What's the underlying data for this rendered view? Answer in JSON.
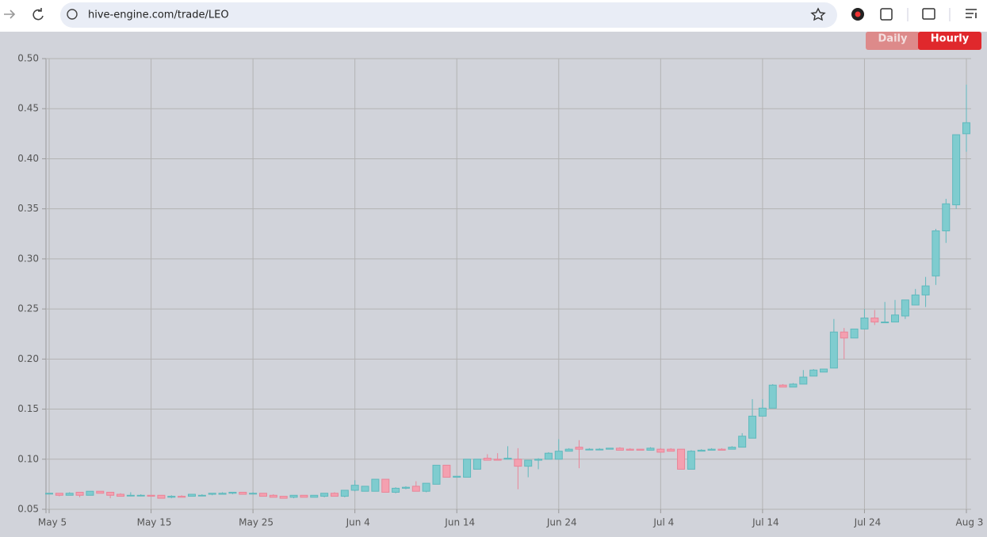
{
  "browser": {
    "url": "hive-engine.com/trade/LEO"
  },
  "buttons": [
    "Daily",
    "Hourly"
  ],
  "chart_data": {
    "type": "candlestick",
    "categories": [
      "May 5",
      null,
      null,
      null,
      null,
      null,
      null,
      null,
      null,
      null,
      "May 15",
      null,
      null,
      null,
      null,
      null,
      null,
      null,
      null,
      null,
      "May 25",
      null,
      null,
      null,
      null,
      null,
      null,
      null,
      null,
      null,
      "Jun 4",
      null,
      null,
      null,
      null,
      null,
      null,
      null,
      null,
      null,
      "Jun 14",
      null,
      null,
      null,
      null,
      null,
      null,
      null,
      null,
      null,
      "Jun 24",
      null,
      null,
      null,
      null,
      null,
      null,
      null,
      null,
      null,
      "Jul 4",
      null,
      null,
      null,
      null,
      null,
      null,
      null,
      null,
      null,
      "Jul 14",
      null,
      null,
      null,
      null,
      null,
      null,
      null,
      null,
      null,
      "Jul 24",
      null,
      null,
      null,
      null,
      null,
      null,
      null,
      null,
      null,
      "Aug 3"
    ],
    "open": [
      0.066,
      0.066,
      0.064,
      0.067,
      0.064,
      0.068,
      0.067,
      0.065,
      0.064,
      0.064,
      0.064,
      0.064,
      0.062,
      0.063,
      0.063,
      0.064,
      0.065,
      0.065,
      0.066,
      0.067,
      0.066,
      0.066,
      0.064,
      0.063,
      0.062,
      0.064,
      0.062,
      0.063,
      0.066,
      0.063,
      0.069,
      0.068,
      0.068,
      0.08,
      0.067,
      0.071,
      0.073,
      0.068,
      0.075,
      0.094,
      0.082,
      0.082,
      0.09,
      0.101,
      0.1,
      0.1,
      0.1,
      0.093,
      0.099,
      0.1,
      0.1,
      0.108,
      0.112,
      0.11,
      0.11,
      0.11,
      0.111,
      0.11,
      0.11,
      0.109,
      0.11,
      0.11,
      0.11,
      0.09,
      0.108,
      0.109,
      0.11,
      0.11,
      0.112,
      0.121,
      0.143,
      0.151,
      0.174,
      0.172,
      0.175,
      0.183,
      0.187,
      0.191,
      0.227,
      0.221,
      0.23,
      0.241,
      0.237,
      0.237,
      0.243,
      0.254,
      0.264,
      0.283,
      0.328,
      0.354,
      0.425
    ],
    "high": [
      0.066,
      0.066,
      0.067,
      0.067,
      0.068,
      0.068,
      0.067,
      0.066,
      0.067,
      0.065,
      0.064,
      0.064,
      0.064,
      0.064,
      0.065,
      0.065,
      0.066,
      0.067,
      0.067,
      0.067,
      0.067,
      0.066,
      0.065,
      0.063,
      0.064,
      0.064,
      0.064,
      0.066,
      0.067,
      0.069,
      0.079,
      0.073,
      0.08,
      0.08,
      0.072,
      0.073,
      0.078,
      0.076,
      0.094,
      0.094,
      0.083,
      0.1,
      0.1,
      0.105,
      0.106,
      0.113,
      0.111,
      0.099,
      0.101,
      0.107,
      0.12,
      0.111,
      0.119,
      0.111,
      0.111,
      0.111,
      0.112,
      0.111,
      0.11,
      0.112,
      0.111,
      0.111,
      0.11,
      0.109,
      0.11,
      0.111,
      0.111,
      0.113,
      0.126,
      0.16,
      0.16,
      0.175,
      0.175,
      0.176,
      0.189,
      0.19,
      0.19,
      0.24,
      0.231,
      0.23,
      0.25,
      0.249,
      0.257,
      0.259,
      0.259,
      0.27,
      0.282,
      0.33,
      0.36,
      0.424,
      0.474
    ],
    "low": [
      0.066,
      0.063,
      0.064,
      0.062,
      0.064,
      0.066,
      0.061,
      0.063,
      0.063,
      0.063,
      0.063,
      0.061,
      0.061,
      0.062,
      0.063,
      0.063,
      0.064,
      0.065,
      0.065,
      0.065,
      0.065,
      0.063,
      0.062,
      0.061,
      0.061,
      0.062,
      0.062,
      0.062,
      0.063,
      0.062,
      0.068,
      0.068,
      0.068,
      0.067,
      0.066,
      0.07,
      0.068,
      0.067,
      0.075,
      0.082,
      0.082,
      0.082,
      0.09,
      0.099,
      0.099,
      0.1,
      0.07,
      0.082,
      0.09,
      0.1,
      0.1,
      0.108,
      0.091,
      0.11,
      0.11,
      0.11,
      0.109,
      0.109,
      0.109,
      0.109,
      0.107,
      0.108,
      0.09,
      0.09,
      0.108,
      0.109,
      0.109,
      0.11,
      0.112,
      0.121,
      0.143,
      0.151,
      0.172,
      0.172,
      0.175,
      0.183,
      0.187,
      0.191,
      0.2,
      0.221,
      0.23,
      0.234,
      0.236,
      0.237,
      0.24,
      0.254,
      0.252,
      0.274,
      0.316,
      0.35,
      0.407
    ],
    "close": [
      0.066,
      0.064,
      0.066,
      0.064,
      0.068,
      0.066,
      0.064,
      0.063,
      0.064,
      0.064,
      0.063,
      0.061,
      0.063,
      0.062,
      0.065,
      0.064,
      0.066,
      0.066,
      0.067,
      0.065,
      0.066,
      0.063,
      0.062,
      0.061,
      0.064,
      0.062,
      0.064,
      0.066,
      0.063,
      0.069,
      0.074,
      0.073,
      0.08,
      0.067,
      0.071,
      0.072,
      0.068,
      0.076,
      0.094,
      0.082,
      0.083,
      0.1,
      0.1,
      0.099,
      0.099,
      0.101,
      0.093,
      0.099,
      0.1,
      0.106,
      0.108,
      0.11,
      0.11,
      0.11,
      0.11,
      0.111,
      0.109,
      0.109,
      0.109,
      0.111,
      0.107,
      0.108,
      0.09,
      0.108,
      0.109,
      0.11,
      0.109,
      0.112,
      0.123,
      0.143,
      0.151,
      0.174,
      0.172,
      0.175,
      0.182,
      0.189,
      0.19,
      0.227,
      0.221,
      0.23,
      0.241,
      0.237,
      0.237,
      0.244,
      0.259,
      0.264,
      0.273,
      0.328,
      0.355,
      0.424,
      0.436
    ],
    "up_color": "#7fcccf",
    "down_color": "#f4a0b0",
    "ylim": [
      0.05,
      0.5
    ],
    "yticks": [
      0.05,
      {
        "value": 0.1,
        "label": "0.10"
      },
      0.15,
      {
        "value": 0.2,
        "label": "0.20"
      },
      0.25,
      {
        "value": 0.3,
        "label": "0.30"
      },
      0.35,
      {
        "value": 0.4,
        "label": "0.40"
      },
      0.45,
      {
        "value": 0.5,
        "label": "0.50"
      }
    ],
    "grid": true
  }
}
